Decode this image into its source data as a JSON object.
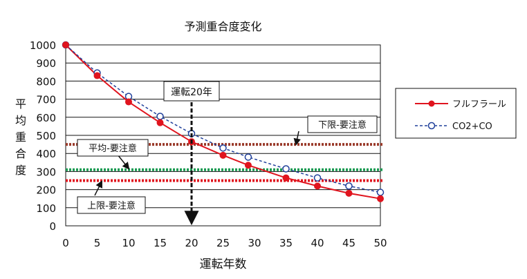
{
  "chart_data": {
    "type": "line",
    "title": "予測重合度変化",
    "xlabel": "運転年数",
    "ylabel": "平均重合度",
    "xlim": [
      0,
      50
    ],
    "ylim": [
      0,
      1000
    ],
    "x_ticks": [
      "0",
      "5",
      "10",
      "15",
      "20",
      "25",
      "30",
      "35",
      "40",
      "45",
      "50"
    ],
    "y_ticks": [
      "0",
      "100",
      "200",
      "300",
      "400",
      "500",
      "600",
      "700",
      "800",
      "900",
      "1000"
    ],
    "grid": "horizontal",
    "legend_position": "right",
    "series": [
      {
        "name": "フルフラール",
        "color": "#e0141e",
        "style": "solid",
        "marker": "filled-circle",
        "x": [
          0,
          5,
          10,
          15,
          20,
          25,
          29,
          35,
          40,
          45,
          50
        ],
        "y": [
          1000,
          830,
          685,
          570,
          465,
          390,
          335,
          265,
          220,
          180,
          150
        ]
      },
      {
        "name": "CO2+CO",
        "color": "#1f3f9a",
        "style": "dashed",
        "marker": "open-circle",
        "x": [
          0,
          5,
          10,
          15,
          20,
          25,
          29,
          35,
          40,
          45,
          50
        ],
        "y": [
          1000,
          845,
          715,
          605,
          510,
          430,
          380,
          315,
          265,
          220,
          185
        ]
      }
    ],
    "reference_lines": [
      {
        "label": "下限-要注意",
        "value": 450,
        "color": "#9a3a2a"
      },
      {
        "label": "平均-要注意",
        "value": 310,
        "color": "#1a9a52"
      },
      {
        "label": "上限-要注意",
        "value": 250,
        "color": "#e0141e"
      }
    ],
    "vertical_marker": {
      "label": "運転20年",
      "value": 20,
      "color": "#111111"
    }
  }
}
